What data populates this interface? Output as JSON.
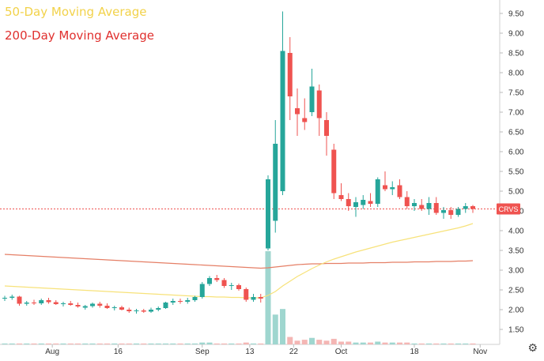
{
  "legend": {
    "ma50_label": "50-Day Moving Average",
    "ma200_label": "200-Day Moving Average"
  },
  "colors": {
    "up": "#26a69a",
    "down": "#ef5350",
    "ma50": "#f7e27a",
    "ma200": "#e57f66",
    "price_line": "#ef5350",
    "volume_up": "#9fd6cf",
    "volume_down": "#f4b6b4"
  },
  "chart_data": {
    "type": "candlestick",
    "ticker": "CRVS",
    "last_price": 4.55,
    "x_ticks": [
      "Aug",
      "16",
      "Sep",
      "13",
      "22",
      "Oct",
      "18",
      "Nov"
    ],
    "y_ticks": [
      "1.50",
      "2.00",
      "2.50",
      "3.00",
      "3.50",
      "4.00",
      "4.50",
      "5.00",
      "5.50",
      "6.00",
      "6.50",
      "7.00",
      "7.50",
      "8.00",
      "8.50",
      "9.00",
      "9.50"
    ],
    "ylim": [
      1.05,
      9.8
    ],
    "candles": [
      [
        2.28,
        2.35,
        2.22,
        2.3
      ],
      [
        2.3,
        2.38,
        2.25,
        2.33
      ],
      [
        2.33,
        2.35,
        2.1,
        2.15
      ],
      [
        2.15,
        2.22,
        2.1,
        2.18
      ],
      [
        2.18,
        2.25,
        2.12,
        2.16
      ],
      [
        2.16,
        2.28,
        2.12,
        2.24
      ],
      [
        2.24,
        2.3,
        2.15,
        2.19
      ],
      [
        2.19,
        2.24,
        2.12,
        2.14
      ],
      [
        2.14,
        2.2,
        2.08,
        2.16
      ],
      [
        2.16,
        2.22,
        2.1,
        2.12
      ],
      [
        2.12,
        2.18,
        2.05,
        2.08
      ],
      [
        2.05,
        2.12,
        2.0,
        2.09
      ],
      [
        2.09,
        2.18,
        2.05,
        2.15
      ],
      [
        2.15,
        2.2,
        2.05,
        2.1
      ],
      [
        2.1,
        2.16,
        2.02,
        2.04
      ],
      [
        2.04,
        2.1,
        1.98,
        2.06
      ],
      [
        2.06,
        2.1,
        1.98,
        2.0
      ],
      [
        2.0,
        2.05,
        1.92,
        1.96
      ],
      [
        1.96,
        2.02,
        1.9,
        1.98
      ],
      [
        1.98,
        2.02,
        1.92,
        1.95
      ],
      [
        1.95,
        2.05,
        1.92,
        2.0
      ],
      [
        2.0,
        2.08,
        1.96,
        2.04
      ],
      [
        2.04,
        2.2,
        2.02,
        2.18
      ],
      [
        2.18,
        2.28,
        2.12,
        2.22
      ],
      [
        2.22,
        2.28,
        2.15,
        2.2
      ],
      [
        2.2,
        2.3,
        2.15,
        2.24
      ],
      [
        2.24,
        2.35,
        2.2,
        2.32
      ],
      [
        2.32,
        2.7,
        2.28,
        2.65
      ],
      [
        2.65,
        2.85,
        2.6,
        2.8
      ],
      [
        2.8,
        2.88,
        2.7,
        2.75
      ],
      [
        2.75,
        2.8,
        2.55,
        2.6
      ],
      [
        2.6,
        2.68,
        2.5,
        2.62
      ],
      [
        2.62,
        2.66,
        2.48,
        2.52
      ],
      [
        2.52,
        2.56,
        2.2,
        2.25
      ],
      [
        2.25,
        2.4,
        2.2,
        2.32
      ],
      [
        2.32,
        2.4,
        2.18,
        2.28
      ],
      [
        3.55,
        5.4,
        3.5,
        5.3
      ],
      [
        4.25,
        6.8,
        3.95,
        6.2
      ],
      [
        5.0,
        9.55,
        4.9,
        8.55
      ],
      [
        8.5,
        8.9,
        6.8,
        7.4
      ],
      [
        7.1,
        7.6,
        6.4,
        6.95
      ],
      [
        6.85,
        7.35,
        6.55,
        6.75
      ],
      [
        7.0,
        8.1,
        6.9,
        7.65
      ],
      [
        7.55,
        7.7,
        6.4,
        6.85
      ],
      [
        6.8,
        7.0,
        5.9,
        6.4
      ],
      [
        6.05,
        6.2,
        4.8,
        4.95
      ],
      [
        4.9,
        5.2,
        4.75,
        4.8
      ],
      [
        4.8,
        4.95,
        4.5,
        4.62
      ],
      [
        4.6,
        4.85,
        4.35,
        4.72
      ],
      [
        4.65,
        4.9,
        4.55,
        4.78
      ],
      [
        4.75,
        4.95,
        4.6,
        4.68
      ],
      [
        4.68,
        5.35,
        4.6,
        5.3
      ],
      [
        5.15,
        5.5,
        5.0,
        5.05
      ],
      [
        5.05,
        5.25,
        4.9,
        5.1
      ],
      [
        5.15,
        5.3,
        4.8,
        4.85
      ],
      [
        4.85,
        5.0,
        4.55,
        4.62
      ],
      [
        4.62,
        4.8,
        4.5,
        4.7
      ],
      [
        4.65,
        4.8,
        4.5,
        4.55
      ],
      [
        4.55,
        4.85,
        4.4,
        4.7
      ],
      [
        4.7,
        4.85,
        4.4,
        4.45
      ],
      [
        4.45,
        4.6,
        4.3,
        4.52
      ],
      [
        4.52,
        4.6,
        4.3,
        4.4
      ],
      [
        4.4,
        4.6,
        4.35,
        4.55
      ],
      [
        4.55,
        4.7,
        4.45,
        4.62
      ],
      [
        4.62,
        4.65,
        4.45,
        4.55
      ]
    ],
    "volume": [
      0.01,
      0.01,
      0.01,
      0.01,
      0.01,
      0.01,
      0.01,
      0.01,
      0.01,
      0.01,
      0.01,
      0.01,
      0.01,
      0.01,
      0.01,
      0.01,
      0.01,
      0.01,
      0.01,
      0.01,
      0.01,
      0.01,
      0.01,
      0.01,
      0.01,
      0.01,
      0.01,
      0.02,
      0.02,
      0.01,
      0.01,
      0.01,
      0.01,
      0.02,
      0.01,
      0.01,
      1.0,
      0.32,
      0.38,
      0.08,
      0.04,
      0.05,
      0.07,
      0.05,
      0.04,
      0.06,
      0.03,
      0.03,
      0.02,
      0.02,
      0.02,
      0.03,
      0.02,
      0.02,
      0.02,
      0.02,
      0.01,
      0.01,
      0.01,
      0.01,
      0.01,
      0.01,
      0.01,
      0.01,
      0.01
    ],
    "ma50": [
      2.6,
      2.59,
      2.58,
      2.57,
      2.56,
      2.55,
      2.54,
      2.53,
      2.52,
      2.51,
      2.5,
      2.49,
      2.48,
      2.47,
      2.46,
      2.45,
      2.44,
      2.43,
      2.42,
      2.41,
      2.4,
      2.39,
      2.38,
      2.37,
      2.36,
      2.35,
      2.34,
      2.33,
      2.33,
      2.32,
      2.32,
      2.31,
      2.31,
      2.3,
      2.3,
      2.3,
      2.36,
      2.46,
      2.6,
      2.72,
      2.84,
      2.94,
      3.04,
      3.13,
      3.21,
      3.28,
      3.34,
      3.4,
      3.46,
      3.51,
      3.56,
      3.61,
      3.66,
      3.71,
      3.75,
      3.79,
      3.83,
      3.87,
      3.91,
      3.95,
      3.99,
      4.03,
      4.07,
      4.12,
      4.18
    ],
    "ma200": [
      3.4,
      3.39,
      3.38,
      3.37,
      3.36,
      3.35,
      3.34,
      3.33,
      3.32,
      3.31,
      3.3,
      3.29,
      3.28,
      3.27,
      3.26,
      3.25,
      3.24,
      3.23,
      3.22,
      3.21,
      3.2,
      3.19,
      3.18,
      3.17,
      3.16,
      3.15,
      3.14,
      3.13,
      3.12,
      3.11,
      3.1,
      3.09,
      3.08,
      3.07,
      3.06,
      3.05,
      3.06,
      3.08,
      3.1,
      3.12,
      3.14,
      3.15,
      3.16,
      3.16,
      3.17,
      3.17,
      3.17,
      3.18,
      3.18,
      3.18,
      3.19,
      3.19,
      3.19,
      3.2,
      3.2,
      3.2,
      3.21,
      3.21,
      3.21,
      3.22,
      3.22,
      3.22,
      3.23,
      3.23,
      3.24
    ]
  }
}
